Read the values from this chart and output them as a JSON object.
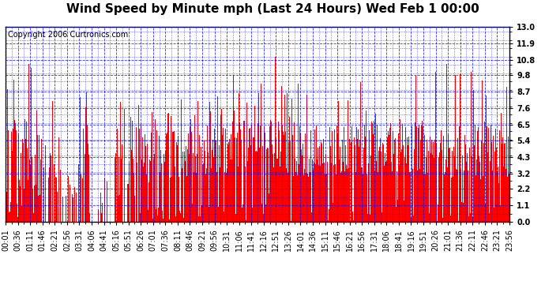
{
  "title": "Wind Speed by Minute mph (Last 24 Hours) Wed Feb 1 00:00",
  "copyright": "Copyright 2006 Curtronics.com",
  "yticks": [
    0.0,
    1.1,
    2.2,
    3.2,
    4.3,
    5.4,
    6.5,
    7.6,
    8.7,
    9.8,
    10.8,
    11.9,
    13.0
  ],
  "ylim": [
    0.0,
    13.0
  ],
  "bar_color": "#FF0000",
  "background_color": "#FFFFFF",
  "plot_bg_color": "#FFFFFF",
  "grid_color": "#0000FF",
  "border_color": "#000000",
  "title_fontsize": 11,
  "copyright_fontsize": 7,
  "tick_label_fontsize": 7,
  "xtick_labels": [
    "00:01",
    "00:36",
    "01:11",
    "01:46",
    "02:21",
    "02:56",
    "03:31",
    "04:06",
    "04:41",
    "05:16",
    "05:51",
    "06:26",
    "07:01",
    "07:36",
    "08:11",
    "08:46",
    "09:21",
    "09:56",
    "10:31",
    "11:06",
    "11:41",
    "12:16",
    "12:51",
    "13:26",
    "14:01",
    "14:36",
    "15:11",
    "15:46",
    "16:21",
    "16:56",
    "17:31",
    "18:06",
    "18:41",
    "19:16",
    "19:51",
    "20:26",
    "21:01",
    "21:36",
    "22:11",
    "22:46",
    "23:21",
    "23:56"
  ],
  "num_minutes": 1440,
  "seed": 99
}
